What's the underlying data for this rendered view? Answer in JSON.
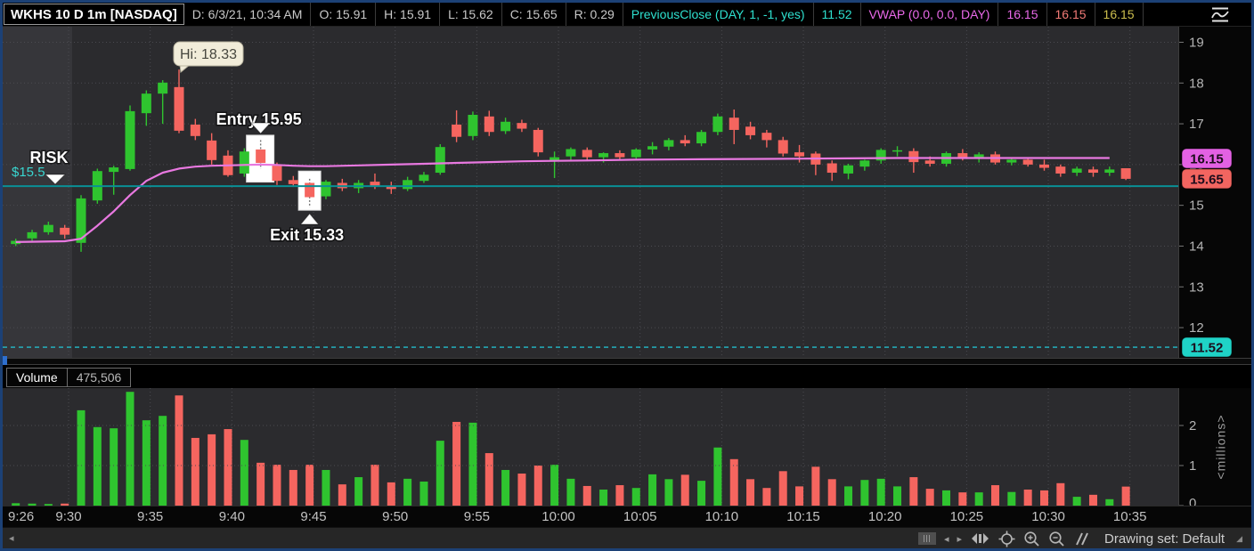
{
  "header": {
    "title": "WKHS 10 D 1m [NASDAQ]",
    "ohlc_fields": [
      {
        "text": "D: 6/3/21, 10:34 AM"
      },
      {
        "text": "O: 15.91"
      },
      {
        "text": "H: 15.91"
      },
      {
        "text": "L: 15.62"
      },
      {
        "text": "C: 15.65"
      },
      {
        "text": "R: 0.29"
      }
    ],
    "studies": [
      {
        "text": "PreviousClose (DAY, 1, -1, yes)",
        "color": "#2ee0cf"
      },
      {
        "text": "11.52",
        "color": "#2ee0cf"
      },
      {
        "text": "VWAP (0.0, 0.0, DAY)",
        "color": "#e969e9"
      },
      {
        "text": "16.15",
        "color": "#e969e9"
      },
      {
        "text": "16.15",
        "color": "#f27b77"
      },
      {
        "text": "16.15",
        "color": "#cdbf4e"
      }
    ]
  },
  "chart_data": {
    "type": "candlestick",
    "symbol": "WKHS",
    "timeframe": "10 D 1m",
    "candles": [
      [
        "9:26",
        14.05,
        14.18,
        14.0,
        14.13,
        0.06
      ],
      [
        "9:27",
        14.19,
        14.4,
        14.1,
        14.34,
        0.05
      ],
      [
        "9:28",
        14.34,
        14.6,
        14.28,
        14.52,
        0.04
      ],
      [
        "9:29",
        14.45,
        14.52,
        14.18,
        14.28,
        0.05
      ],
      [
        "9:30",
        14.08,
        15.25,
        13.86,
        15.17,
        2.38
      ],
      [
        "9:31",
        15.12,
        15.9,
        15.04,
        15.84,
        1.96
      ],
      [
        "9:32",
        15.82,
        15.97,
        15.26,
        15.93,
        1.93
      ],
      [
        "9:33",
        15.89,
        17.45,
        15.85,
        17.31,
        2.84
      ],
      [
        "9:34",
        17.26,
        17.82,
        16.95,
        17.74,
        2.13
      ],
      [
        "9:35",
        17.74,
        18.07,
        17.0,
        18.01,
        2.24
      ],
      [
        "9:36",
        17.9,
        18.33,
        16.77,
        16.83,
        2.75
      ],
      [
        "9:37",
        16.98,
        17.12,
        16.6,
        16.7,
        1.69
      ],
      [
        "9:38",
        16.59,
        16.77,
        16.0,
        16.11,
        1.78
      ],
      [
        "9:39",
        16.22,
        16.35,
        15.7,
        15.74,
        1.91
      ],
      [
        "9:40",
        15.78,
        16.4,
        15.7,
        16.32,
        1.64
      ],
      [
        "9:41",
        16.37,
        16.6,
        15.9,
        16.04,
        1.07
      ],
      [
        "9:42",
        15.98,
        16.05,
        15.5,
        15.6,
        1.02
      ],
      [
        "9:43",
        15.62,
        15.72,
        15.45,
        15.52,
        0.89
      ],
      [
        "9:44",
        15.55,
        15.65,
        14.95,
        15.2,
        1.02
      ],
      [
        "9:45",
        15.22,
        15.62,
        15.15,
        15.58,
        0.89
      ],
      [
        "9:46",
        15.55,
        15.65,
        15.35,
        15.42,
        0.53
      ],
      [
        "9:47",
        15.42,
        15.62,
        15.3,
        15.55,
        0.71
      ],
      [
        "9:48",
        15.58,
        15.78,
        15.4,
        15.46,
        1.02
      ],
      [
        "9:49",
        15.48,
        15.58,
        15.28,
        15.4,
        0.58
      ],
      [
        "9:50",
        15.4,
        15.7,
        15.35,
        15.62,
        0.67
      ],
      [
        "9:51",
        15.6,
        15.82,
        15.55,
        15.75,
        0.6
      ],
      [
        "9:52",
        15.8,
        16.5,
        15.75,
        16.43,
        1.62
      ],
      [
        "9:53",
        16.98,
        17.33,
        16.55,
        16.68,
        2.09
      ],
      [
        "9:54",
        16.7,
        17.3,
        16.6,
        17.22,
        2.07
      ],
      [
        "9:55",
        17.18,
        17.32,
        16.7,
        16.8,
        1.31
      ],
      [
        "9:56",
        16.82,
        17.15,
        16.75,
        17.05,
        0.89
      ],
      [
        "9:57",
        17.02,
        17.1,
        16.8,
        16.88,
        0.8
      ],
      [
        "9:58",
        16.85,
        16.9,
        16.2,
        16.3,
        1.0
      ],
      [
        "9:59",
        16.08,
        16.32,
        15.67,
        16.18,
        1.02
      ],
      [
        "10:00",
        16.2,
        16.42,
        16.1,
        16.38,
        0.67
      ],
      [
        "10:01",
        16.36,
        16.42,
        16.1,
        16.18,
        0.49
      ],
      [
        "10:02",
        16.18,
        16.3,
        16.05,
        16.28,
        0.4
      ],
      [
        "10:03",
        16.28,
        16.35,
        16.12,
        16.18,
        0.51
      ],
      [
        "10:04",
        16.18,
        16.4,
        16.12,
        16.37,
        0.44
      ],
      [
        "10:05",
        16.37,
        16.55,
        16.25,
        16.45,
        0.78
      ],
      [
        "10:06",
        16.44,
        16.65,
        16.35,
        16.6,
        0.66
      ],
      [
        "10:07",
        16.6,
        16.72,
        16.45,
        16.52,
        0.77
      ],
      [
        "10:08",
        16.52,
        16.85,
        16.45,
        16.8,
        0.62
      ],
      [
        "10:09",
        16.8,
        17.25,
        16.72,
        17.18,
        1.45
      ],
      [
        "10:10",
        17.15,
        17.35,
        16.5,
        16.85,
        1.16
      ],
      [
        "10:11",
        16.93,
        17.05,
        16.62,
        16.72,
        0.66
      ],
      [
        "10:12",
        16.78,
        16.85,
        16.42,
        16.6,
        0.44
      ],
      [
        "10:13",
        16.6,
        16.68,
        16.2,
        16.27,
        0.86
      ],
      [
        "10:14",
        16.3,
        16.48,
        16.05,
        16.2,
        0.48
      ],
      [
        "10:15",
        16.27,
        16.32,
        15.74,
        16.0,
        0.97
      ],
      [
        "10:16",
        16.03,
        16.1,
        15.6,
        15.8,
        0.66
      ],
      [
        "10:17",
        15.78,
        16.02,
        15.64,
        15.98,
        0.48
      ],
      [
        "10:18",
        15.95,
        16.12,
        15.85,
        16.1,
        0.64
      ],
      [
        "10:19",
        16.1,
        16.4,
        16.02,
        16.36,
        0.67
      ],
      [
        "10:20",
        16.33,
        16.45,
        16.2,
        16.35,
        0.48
      ],
      [
        "10:21",
        16.33,
        16.4,
        15.8,
        16.06,
        0.71
      ],
      [
        "10:22",
        16.1,
        16.2,
        15.95,
        16.02,
        0.42
      ],
      [
        "10:23",
        16.02,
        16.32,
        15.95,
        16.28,
        0.38
      ],
      [
        "10:24",
        16.28,
        16.38,
        16.1,
        16.18,
        0.33
      ],
      [
        "10:25",
        16.18,
        16.3,
        16.05,
        16.25,
        0.33
      ],
      [
        "10:26",
        16.25,
        16.32,
        16.0,
        16.05,
        0.51
      ],
      [
        "10:27",
        16.05,
        16.18,
        15.98,
        16.12,
        0.34
      ],
      [
        "10:28",
        16.12,
        16.18,
        15.95,
        16.0,
        0.4
      ],
      [
        "10:29",
        16.0,
        16.12,
        15.85,
        15.92,
        0.38
      ],
      [
        "10:30",
        15.95,
        16.0,
        15.7,
        15.78,
        0.56
      ],
      [
        "10:31",
        15.8,
        15.95,
        15.72,
        15.9,
        0.22
      ],
      [
        "10:32",
        15.88,
        15.95,
        15.7,
        15.8,
        0.27
      ],
      [
        "10:33",
        15.8,
        15.95,
        15.72,
        15.88,
        0.16
      ],
      [
        "10:34",
        15.91,
        15.91,
        15.62,
        15.65,
        0.475
      ]
    ],
    "premarket_candles": 4,
    "vwap_points": [
      [
        0,
        14.1
      ],
      [
        3,
        14.12
      ],
      [
        4,
        14.18
      ],
      [
        5,
        14.5
      ],
      [
        6,
        14.85
      ],
      [
        7,
        15.25
      ],
      [
        8,
        15.6
      ],
      [
        9,
        15.8
      ],
      [
        10,
        15.9
      ],
      [
        11,
        15.95
      ],
      [
        12,
        15.97
      ],
      [
        13,
        15.98
      ],
      [
        14,
        15.99
      ],
      [
        15,
        16.0
      ],
      [
        16,
        15.99
      ],
      [
        17,
        15.97
      ],
      [
        18,
        15.96
      ],
      [
        19,
        15.96
      ],
      [
        21,
        15.98
      ],
      [
        23,
        16.0
      ],
      [
        25,
        16.02
      ],
      [
        27,
        16.04
      ],
      [
        29,
        16.06
      ],
      [
        31,
        16.08
      ],
      [
        33,
        16.09
      ],
      [
        35,
        16.1
      ],
      [
        38,
        16.12
      ],
      [
        42,
        16.13
      ],
      [
        46,
        16.14
      ],
      [
        50,
        16.15
      ],
      [
        54,
        16.16
      ],
      [
        58,
        16.16
      ],
      [
        62,
        16.16
      ],
      [
        67,
        16.16
      ]
    ],
    "price_axis": {
      "ticks": [
        19,
        18,
        17,
        16,
        15,
        14,
        13,
        12
      ],
      "badges": [
        {
          "value": "16.15",
          "price": 16.15,
          "bg": "#e361e3"
        },
        {
          "value": "15.65",
          "price": 15.65,
          "bg": "#f26560"
        },
        {
          "value": "11.52",
          "price": 11.52,
          "bg": "#1fd3c7"
        }
      ]
    },
    "annotations": {
      "high_marker": {
        "label": "Hi: 18.33",
        "candle_index": 10,
        "price": 18.33
      },
      "entry_marker": {
        "label": "Entry 15.95",
        "candle_index": 15,
        "box_top_price": 16.72,
        "box_bottom_price": 15.57
      },
      "exit_marker": {
        "label": "Exit 15.33",
        "candle_index": 18,
        "box_top_price": 15.84,
        "box_bottom_price": 14.88
      },
      "risk_marker": {
        "label": "RISK",
        "price_label": "$15.5",
        "price": 15.47
      },
      "prev_close_line": {
        "price": 11.52
      }
    },
    "colors": {
      "up": "#2fc42f",
      "down": "#f5655f",
      "vwap": "#e878e0",
      "risk_line": "#0a8f96",
      "prev_close": "#23bccb"
    },
    "x_axis_labels": [
      "9:26",
      "9:30",
      "9:35",
      "9:40",
      "9:45",
      "9:50",
      "9:55",
      "10:00",
      "10:05",
      "10:10",
      "10:15",
      "10:20",
      "10:25",
      "10:30",
      "10:35"
    ]
  },
  "volume": {
    "label": "Volume",
    "value": "475,506",
    "unit": "<millions>",
    "ticks": [
      2,
      1,
      0
    ]
  },
  "toolbar": {
    "drawing_set": "Drawing set: Default"
  }
}
